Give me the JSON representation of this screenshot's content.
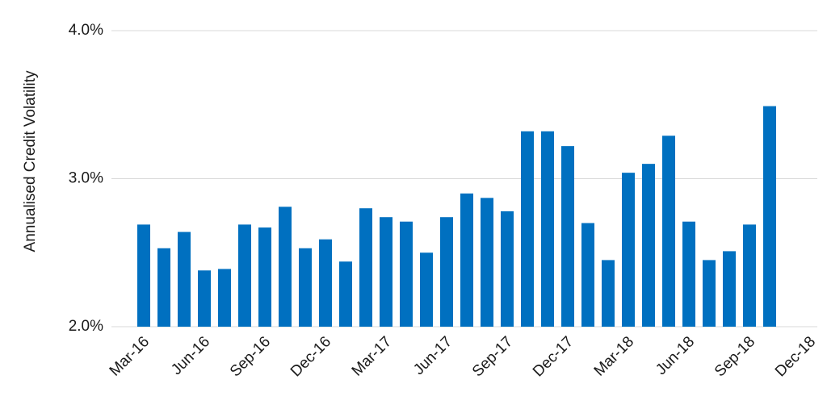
{
  "chart_data": {
    "type": "bar",
    "y_label": "Annualised Credit Volatility",
    "categories": [
      "Mar-16",
      null,
      null,
      "Jun-16",
      null,
      null,
      "Sep-16",
      null,
      null,
      "Dec-16",
      null,
      null,
      "Mar-17",
      null,
      null,
      "Jun-17",
      null,
      null,
      "Sep-17",
      null,
      null,
      "Dec-17",
      null,
      null,
      "Mar-18",
      null,
      null,
      "Jun-18",
      null,
      null,
      "Sep-18",
      null,
      null,
      "Dec-18"
    ],
    "values": [
      2.69,
      2.53,
      2.64,
      2.38,
      2.39,
      2.69,
      2.67,
      2.81,
      2.53,
      2.59,
      2.44,
      2.8,
      2.74,
      2.71,
      2.5,
      2.74,
      2.9,
      2.87,
      2.78,
      3.32,
      3.32,
      3.22,
      2.7,
      2.45,
      3.04,
      3.1,
      3.29,
      2.71,
      2.45,
      2.51,
      2.69,
      3.49,
      null,
      null
    ],
    "color": "#0070c0",
    "ylim": [
      2,
      4
    ],
    "yticks": [
      {
        "value": 2,
        "label": "2.0%"
      },
      {
        "value": 3,
        "label": "3.0%"
      },
      {
        "value": 4,
        "label": "4.0%"
      }
    ],
    "grid": true
  }
}
